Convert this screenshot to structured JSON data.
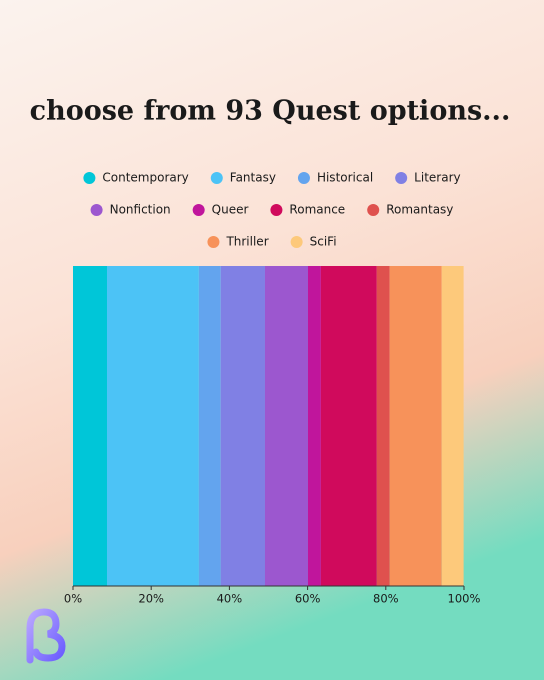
{
  "chart_data": {
    "type": "bar",
    "stacked": true,
    "orientation": "horizontal",
    "title": "choose from 93 Quest options...",
    "categories": [
      null
    ],
    "series": [
      {
        "name": "Contemporary",
        "color": "#00c6d8",
        "values": [
          8.7
        ]
      },
      {
        "name": "Fantasy",
        "color": "#4cc3f6",
        "values": [
          23.5
        ]
      },
      {
        "name": "Historical",
        "color": "#63a4ee",
        "values": [
          5.6
        ]
      },
      {
        "name": "Literary",
        "color": "#8080e4",
        "values": [
          11.3
        ]
      },
      {
        "name": "Nonfiction",
        "color": "#9c57cf",
        "values": [
          11.0
        ]
      },
      {
        "name": "Queer",
        "color": "#c0159c",
        "values": [
          3.3
        ]
      },
      {
        "name": "Romance",
        "color": "#d00a5c",
        "values": [
          14.3
        ]
      },
      {
        "name": "Romantasy",
        "color": "#df514e",
        "values": [
          3.3
        ]
      },
      {
        "name": "Thriller",
        "color": "#f7925a",
        "values": [
          13.3
        ]
      },
      {
        "name": "SciFi",
        "color": "#fdc97b",
        "values": [
          5.6
        ]
      }
    ],
    "xlim": [
      0,
      100
    ],
    "xticks": [
      {
        "value": 0,
        "label": "0%"
      },
      {
        "value": 20,
        "label": "20%"
      },
      {
        "value": 40,
        "label": "40%"
      },
      {
        "value": 60,
        "label": "60%"
      },
      {
        "value": 80,
        "label": "80%"
      },
      {
        "value": 100,
        "label": "100%"
      }
    ],
    "grid": false
  }
}
